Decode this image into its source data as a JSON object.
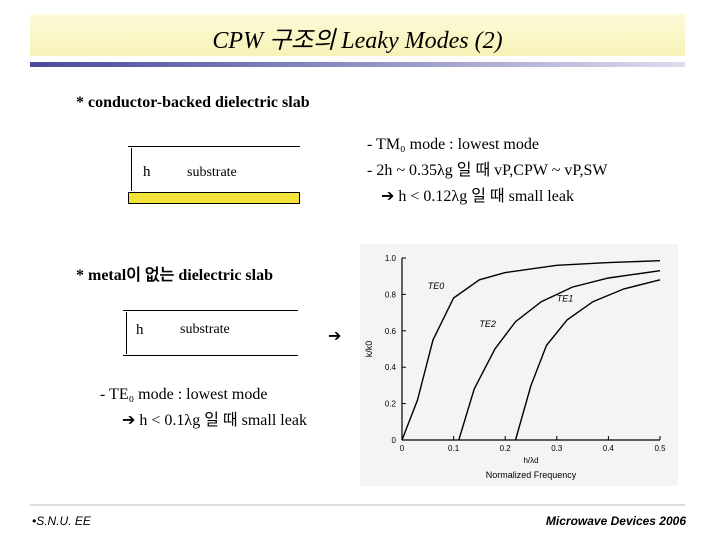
{
  "title": "CPW 구조의 Leaky Modes (2)",
  "section1": {
    "header": "* conductor-backed dielectric slab",
    "h_label": "h",
    "substrate_label": "substrate"
  },
  "notes1": {
    "line1": "- TM₀ mode : lowest mode",
    "line2": "- 2h ~ 0.35λg 일 때 vP,CPW ~ vP,SW",
    "line3": "h < 0.12λg 일 때 small leak"
  },
  "section2": {
    "header": "* metal이 없는 dielectric slab",
    "h_label": "h",
    "substrate_label": "substrate"
  },
  "notes2": {
    "line1": "- TE₀ mode : lowest mode",
    "line2": "h < 0.1λg 일 때 small leak"
  },
  "chart_data": {
    "type": "line",
    "title": "",
    "xlabel": "Normalized Frequency",
    "x_unit": "h/λd",
    "ylabel": "k/k0",
    "xlim": [
      0,
      0.5
    ],
    "ylim": [
      0,
      1.0
    ],
    "x_ticks": [
      "0",
      "0.1",
      "0.2",
      "0.3",
      "0.4",
      "0.5"
    ],
    "y_ticks": [
      "0",
      "0.2",
      "0.4",
      "0.6",
      "0.8",
      "1.0"
    ],
    "series": [
      {
        "name": "TE0",
        "x": [
          0.0,
          0.03,
          0.06,
          0.1,
          0.15,
          0.2,
          0.3,
          0.4,
          0.5
        ],
        "values": [
          0.0,
          0.22,
          0.55,
          0.78,
          0.88,
          0.92,
          0.96,
          0.975,
          0.985
        ]
      },
      {
        "name": "TE2",
        "x": [
          0.11,
          0.14,
          0.18,
          0.22,
          0.27,
          0.33,
          0.4,
          0.5
        ],
        "values": [
          0.0,
          0.28,
          0.5,
          0.65,
          0.76,
          0.84,
          0.89,
          0.93
        ]
      },
      {
        "name": "TE1",
        "x": [
          0.22,
          0.25,
          0.28,
          0.32,
          0.37,
          0.43,
          0.5
        ],
        "values": [
          0.0,
          0.3,
          0.52,
          0.66,
          0.76,
          0.83,
          0.88
        ]
      }
    ],
    "grid": false
  },
  "arrow_glyph": "➔",
  "footer": {
    "left": "S.N.U. EE",
    "right": "Microwave Devices 2006"
  }
}
